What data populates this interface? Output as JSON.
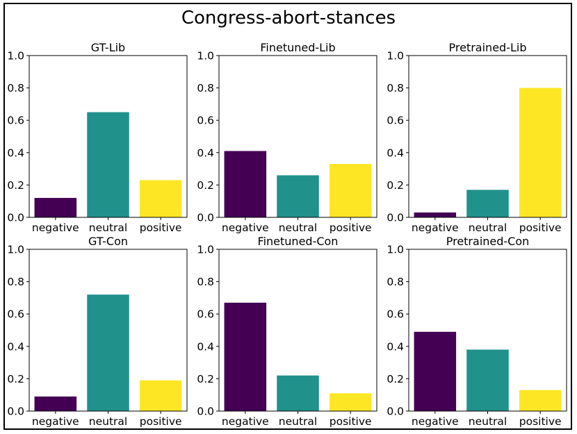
{
  "suptitle": "Congress-abort-stances",
  "colors": {
    "negative": "#440154",
    "neutral": "#21918c",
    "positive": "#fde725",
    "axis": "#000000"
  },
  "chart_data": [
    {
      "type": "bar",
      "title": "GT-Lib",
      "categories": [
        "negative",
        "neutral",
        "positive"
      ],
      "values": [
        0.12,
        0.65,
        0.23
      ],
      "ylim": [
        0,
        1.0
      ],
      "yticks": [
        "0.0",
        "0.2",
        "0.4",
        "0.6",
        "0.8",
        "1.0"
      ],
      "xlabel": "",
      "ylabel": ""
    },
    {
      "type": "bar",
      "title": "Finetuned-Lib",
      "categories": [
        "negative",
        "neutral",
        "positive"
      ],
      "values": [
        0.41,
        0.26,
        0.33
      ],
      "ylim": [
        0,
        1.0
      ],
      "yticks": [
        "0.0",
        "0.2",
        "0.4",
        "0.6",
        "0.8",
        "1.0"
      ],
      "xlabel": "",
      "ylabel": ""
    },
    {
      "type": "bar",
      "title": "Pretrained-Lib",
      "categories": [
        "negative",
        "neutral",
        "positive"
      ],
      "values": [
        0.03,
        0.17,
        0.8
      ],
      "ylim": [
        0,
        1.0
      ],
      "yticks": [
        "0.0",
        "0.2",
        "0.4",
        "0.6",
        "0.8",
        "1.0"
      ],
      "xlabel": "",
      "ylabel": ""
    },
    {
      "type": "bar",
      "title": "GT-Con",
      "categories": [
        "negative",
        "neutral",
        "positive"
      ],
      "values": [
        0.09,
        0.72,
        0.19
      ],
      "ylim": [
        0,
        1.0
      ],
      "yticks": [
        "0.0",
        "0.2",
        "0.4",
        "0.6",
        "0.8",
        "1.0"
      ],
      "xlabel": "",
      "ylabel": ""
    },
    {
      "type": "bar",
      "title": "Finetuned-Con",
      "categories": [
        "negative",
        "neutral",
        "positive"
      ],
      "values": [
        0.67,
        0.22,
        0.11
      ],
      "ylim": [
        0,
        1.0
      ],
      "yticks": [
        "0.0",
        "0.2",
        "0.4",
        "0.6",
        "0.8",
        "1.0"
      ],
      "xlabel": "",
      "ylabel": ""
    },
    {
      "type": "bar",
      "title": "Pretrained-Con",
      "categories": [
        "negative",
        "neutral",
        "positive"
      ],
      "values": [
        0.49,
        0.38,
        0.13
      ],
      "ylim": [
        0,
        1.0
      ],
      "yticks": [
        "0.0",
        "0.2",
        "0.4",
        "0.6",
        "0.8",
        "1.0"
      ],
      "xlabel": "",
      "ylabel": ""
    }
  ]
}
